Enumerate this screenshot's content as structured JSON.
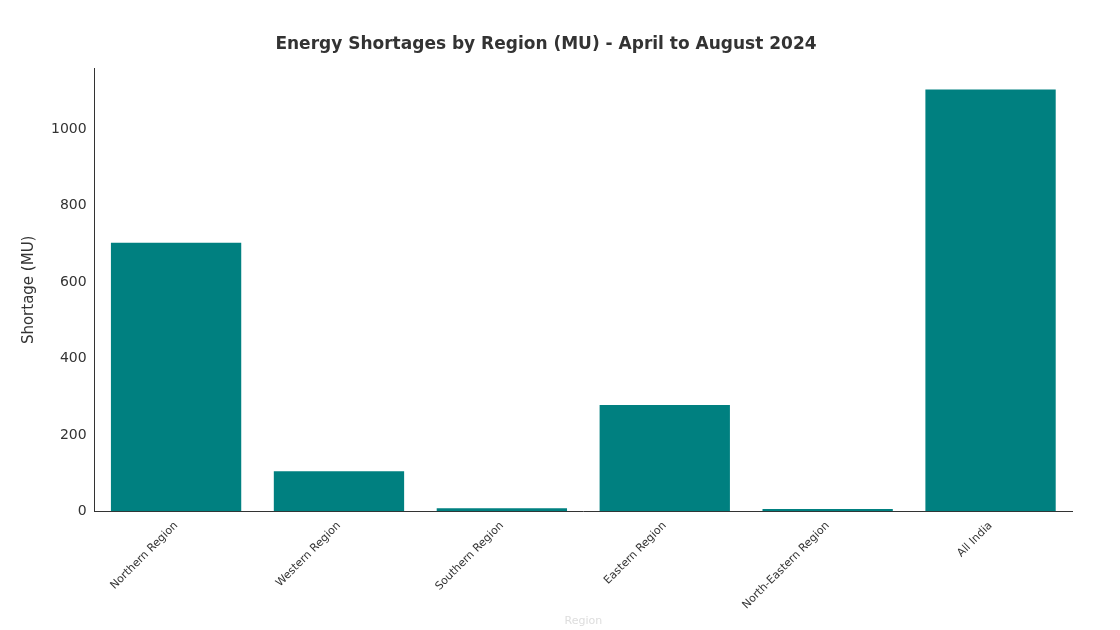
{
  "chart_data": {
    "type": "bar",
    "title": "Energy Shortages by Region (MU) - April to August 2024",
    "xlabel": "Region",
    "ylabel": "Shortage (MU)",
    "categories": [
      "Northern Region",
      "Western Region",
      "Southern Region",
      "Eastern Region",
      "North-Eastern Region",
      "All India"
    ],
    "values": [
      703,
      105,
      8,
      278,
      6,
      1105
    ],
    "color": "#008080",
    "ylim": [
      0,
      1160
    ],
    "yticks": [
      0,
      200,
      400,
      600,
      800,
      1000
    ],
    "grid": false
  }
}
